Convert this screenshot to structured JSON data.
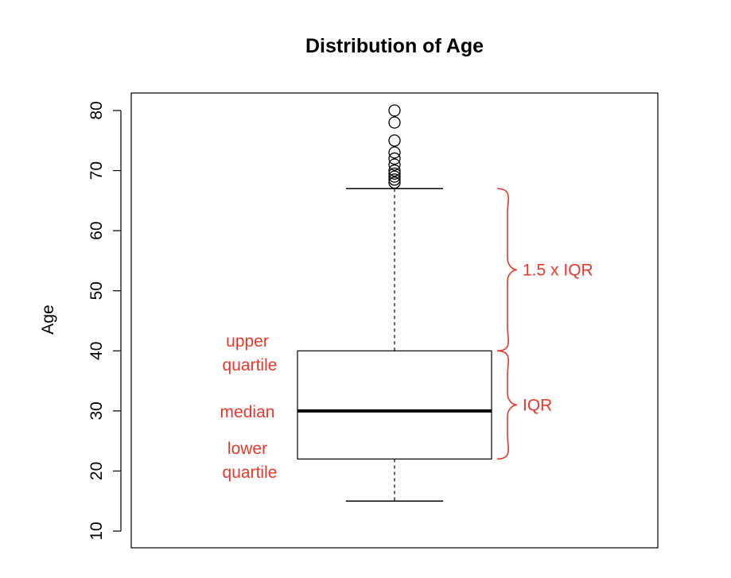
{
  "chart_data": {
    "type": "box",
    "title": "Distribution of Age",
    "xlabel": "",
    "ylabel": "Age",
    "ylim": [
      10,
      80
    ],
    "yticks": [
      10,
      20,
      30,
      40,
      50,
      60,
      70,
      80
    ],
    "grid": false,
    "box": {
      "lower_whisker": 15,
      "q1": 22,
      "median": 30,
      "q3": 40,
      "upper_whisker": 67,
      "outliers": [
        68,
        68.5,
        69,
        69.5,
        70,
        71,
        72,
        73,
        75,
        78,
        80
      ]
    },
    "annotations": {
      "upper_quartile": [
        "upper",
        "quartile"
      ],
      "median": "median",
      "lower_quartile": [
        "lower",
        "quartile"
      ],
      "whisker_range": "1.5 x IQR",
      "iqr": "IQR"
    },
    "colors": {
      "annotation": "#e8372c",
      "box_stroke": "#000000"
    }
  }
}
